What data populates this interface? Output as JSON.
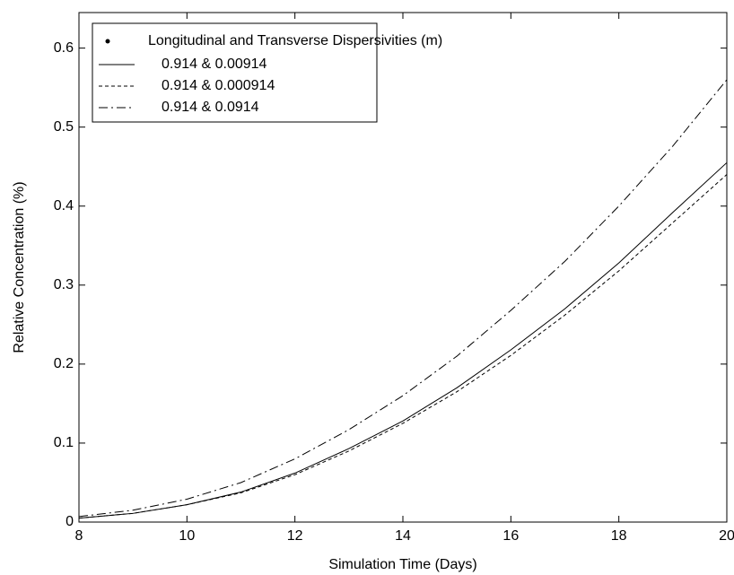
{
  "chart_data": {
    "type": "line",
    "xlabel": "Simulation Time (Days)",
    "ylabel": "Relative Concentration (%)",
    "legend_title": "Longitudinal and Transverse Dispersivities (m)",
    "legend": "upper left",
    "x": [
      8,
      9,
      10,
      11,
      12,
      13,
      14,
      15,
      16,
      17,
      18,
      19,
      20
    ],
    "series": [
      {
        "name": "0.914 & 0.00914",
        "color": "#000000",
        "linestyle": "solid",
        "values": [
          0.005,
          0.011,
          0.022,
          0.038,
          0.062,
          0.093,
          0.128,
          0.17,
          0.218,
          0.27,
          0.328,
          0.392,
          0.455
        ]
      },
      {
        "name": "0.914 & 0.000914",
        "color": "#000000",
        "linestyle": "dashed",
        "values": [
          0.005,
          0.011,
          0.022,
          0.037,
          0.06,
          0.09,
          0.125,
          0.165,
          0.211,
          0.262,
          0.318,
          0.379,
          0.44
        ]
      },
      {
        "name": "0.914 & 0.0914",
        "color": "#000000",
        "linestyle": "dashdot",
        "values": [
          0.007,
          0.015,
          0.029,
          0.05,
          0.08,
          0.117,
          0.16,
          0.21,
          0.268,
          0.33,
          0.4,
          0.476,
          0.56
        ]
      }
    ],
    "xlim": [
      8,
      20
    ],
    "xticks": [
      8,
      10,
      12,
      14,
      16,
      18,
      20
    ],
    "ylim": [
      0,
      0.645
    ],
    "yticks": [
      0,
      0.1,
      0.2,
      0.3,
      0.4,
      0.5,
      0.6
    ],
    "grid": false
  }
}
